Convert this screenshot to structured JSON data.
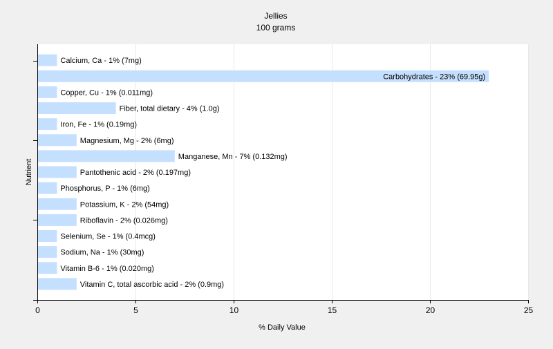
{
  "chart_data": {
    "type": "bar",
    "orientation": "horizontal",
    "title": "Jellies",
    "subtitle": "100 grams",
    "xlabel": "% Daily Value",
    "ylabel": "Nutrient",
    "xlim": [
      0,
      25
    ],
    "xticks": [
      0,
      5,
      10,
      15,
      20,
      25
    ],
    "grid": true,
    "bar_color": "#c5dfff",
    "background_color": "#f0f0f0",
    "plot_background_color": "#ffffff",
    "categories": [
      "Calcium, Ca",
      "Carbohydrates",
      "Copper, Cu",
      "Fiber, total dietary",
      "Iron, Fe",
      "Magnesium, Mg",
      "Manganese, Mn",
      "Pantothenic acid",
      "Phosphorus, P",
      "Potassium, K",
      "Riboflavin",
      "Selenium, Se",
      "Sodium, Na",
      "Vitamin B-6",
      "Vitamin C, total ascorbic acid"
    ],
    "values": [
      1,
      23,
      1,
      4,
      1,
      2,
      7,
      2,
      1,
      2,
      2,
      1,
      1,
      1,
      2
    ],
    "labels": [
      "Calcium, Ca - 1% (7mg)",
      "Carbohydrates - 23% (69.95g)",
      "Copper, Cu - 1% (0.011mg)",
      "Fiber, total dietary - 4% (1.0g)",
      "Iron, Fe - 1% (0.19mg)",
      "Magnesium, Mg - 2% (6mg)",
      "Manganese, Mn - 7% (0.132mg)",
      "Pantothenic acid - 2% (0.197mg)",
      "Phosphorus, P - 1% (6mg)",
      "Potassium, K - 2% (54mg)",
      "Riboflavin - 2% (0.026mg)",
      "Selenium, Se - 1% (0.4mcg)",
      "Sodium, Na - 1% (30mg)",
      "Vitamin B-6 - 1% (0.020mg)",
      "Vitamin C, total ascorbic acid - 2% (0.9mg)"
    ]
  }
}
